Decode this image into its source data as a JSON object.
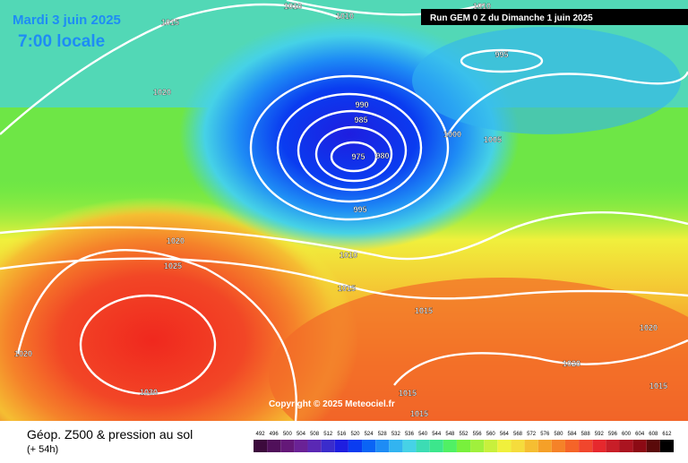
{
  "header": {
    "date": "Mardi 3 juin 2025",
    "time": "7:00 locale",
    "run": "Run GEM 0 Z du Dimanche 1 juin 2025"
  },
  "copyright": "Copyright © 2025 Meteociel.fr",
  "footer": {
    "title": "Géop. Z500 & pression au sol",
    "lead": "(+ 54h)"
  },
  "isobars": [
    "1015",
    "1010",
    "1010",
    "1010",
    "995",
    "1020",
    "990",
    "985",
    "975",
    "980",
    "1000",
    "1005",
    "995",
    "1020",
    "1025",
    "1010",
    "1015",
    "1015",
    "1020",
    "1030",
    "1020",
    "1020",
    "1015",
    "1015",
    "1015"
  ],
  "legend": {
    "labels": [
      "492",
      "496",
      "500",
      "504",
      "508",
      "512",
      "516",
      "520",
      "524",
      "528",
      "532",
      "536",
      "540",
      "544",
      "548",
      "552",
      "556",
      "560",
      "564",
      "568",
      "572",
      "576",
      "580",
      "584",
      "588",
      "592",
      "596",
      "600",
      "604",
      "608",
      "612"
    ],
    "colors": [
      "#3c0a3c",
      "#50105a",
      "#641878",
      "#6a2296",
      "#5a28b4",
      "#3a2ccc",
      "#1e1ee0",
      "#0a3cf0",
      "#0a64f5",
      "#1e8cf5",
      "#32b4f0",
      "#46d2e6",
      "#3cdcb4",
      "#3ce68c",
      "#50f064",
      "#78f03c",
      "#a0f03c",
      "#c8f03c",
      "#f0f03c",
      "#f5dc3c",
      "#f5be32",
      "#f5a028",
      "#f58228",
      "#f56428",
      "#f0462d",
      "#e6282d",
      "#c81e28",
      "#aa1420",
      "#8c0a14",
      "#5a0a0a",
      "#000000"
    ]
  }
}
